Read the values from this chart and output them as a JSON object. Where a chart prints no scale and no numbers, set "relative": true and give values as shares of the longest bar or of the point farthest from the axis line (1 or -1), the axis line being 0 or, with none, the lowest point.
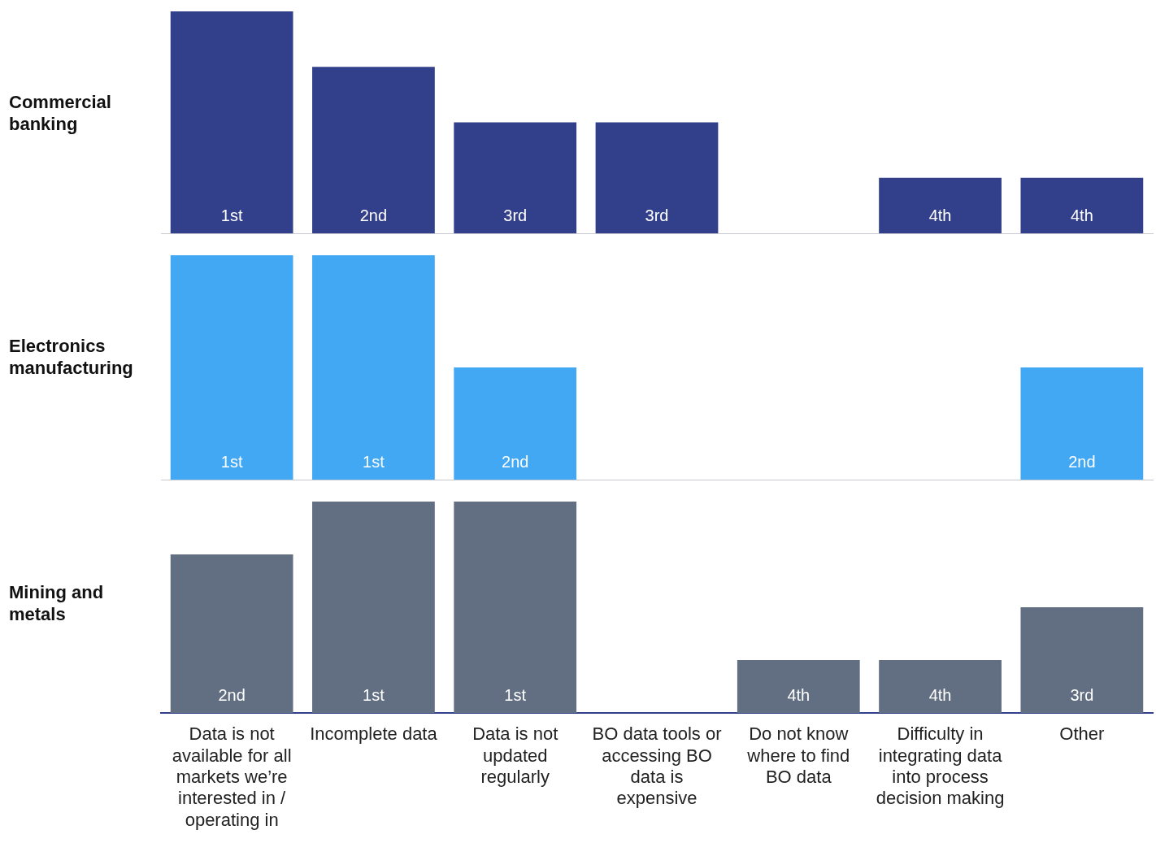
{
  "chart_data": [
    {
      "type": "bar",
      "title": "Commercial banking",
      "relative": true,
      "grid": false,
      "legend": false,
      "tick_labels": false,
      "categories": [
        "Data is not available for all markets we’re interested in / operating in",
        "Incomplete data",
        "Data is not updated regularly",
        "BO data tools or accessing BO data is expensive",
        "Do not know where to find BO data",
        "Difficulty in integrating data into process decision making",
        "Other"
      ],
      "series": [
        {
          "color": "#323f8b",
          "values": [
            1,
            0.75,
            0.5,
            0.5,
            null,
            0.25,
            0.25
          ]
        }
      ],
      "annotations": [
        {
          "text": "1st",
          "x": "Data is not available for all markets we’re interested in / operating in",
          "y": 0
        },
        {
          "text": "2nd",
          "x": "Incomplete data",
          "y": 0
        },
        {
          "text": "3rd",
          "x": "Data is not updated regularly",
          "y": 0
        },
        {
          "text": "3rd",
          "x": "BO data tools or accessing BO data is expensive",
          "y": 0
        },
        {
          "text": "4th",
          "x": "Difficulty in integrating data into process decision making",
          "y": 0
        },
        {
          "text": "4th",
          "x": "Other",
          "y": 0
        }
      ]
    },
    {
      "type": "bar",
      "title": "Electronics manufacturing",
      "relative": true,
      "grid": false,
      "legend": false,
      "tick_labels": false,
      "categories": [
        "Data is not available for all markets we’re interested in / operating in",
        "Incomplete data",
        "Data is not updated regularly",
        "BO data tools or accessing BO data is expensive",
        "Do not know where to find BO data",
        "Difficulty in integrating data into process decision making",
        "Other"
      ],
      "series": [
        {
          "color": "#42a8f4",
          "values": [
            1,
            1,
            0.5,
            null,
            null,
            null,
            0.5
          ]
        }
      ],
      "annotations": [
        {
          "text": "1st",
          "x": "Data is not available for all markets we’re interested in / operating in",
          "y": 0
        },
        {
          "text": "1st",
          "x": "Incomplete data",
          "y": 0
        },
        {
          "text": "2nd",
          "x": "Data is not updated regularly",
          "y": 0
        },
        {
          "text": "2nd",
          "x": "Other",
          "y": 0
        }
      ]
    },
    {
      "type": "bar",
      "title": "Mining and metals",
      "relative": true,
      "grid": false,
      "legend": false,
      "categories": [
        "Data is not available for all markets we’re interested in / operating in",
        "Incomplete data",
        "Data is not updated regularly",
        "BO data tools or accessing BO data is expensive",
        "Do not know where to find BO data",
        "Difficulty in integrating data into process decision making",
        "Other"
      ],
      "series": [
        {
          "color": "#626e81",
          "values": [
            0.75,
            1,
            1,
            null,
            0.25,
            0.25,
            0.5
          ]
        }
      ],
      "annotations": [
        {
          "text": "2nd",
          "x": "Data is not available for all markets we’re interested in / operating in",
          "y": 0
        },
        {
          "text": "1st",
          "x": "Incomplete data",
          "y": 0
        },
        {
          "text": "1st",
          "x": "Data is not updated regularly",
          "y": 0
        },
        {
          "text": "4th",
          "x": "Do not know where to find BO data",
          "y": 0
        },
        {
          "text": "4th",
          "x": "Difficulty in integrating data into process decision making",
          "y": 0
        },
        {
          "text": "3rd",
          "x": "Other",
          "y": 0
        }
      ]
    }
  ]
}
